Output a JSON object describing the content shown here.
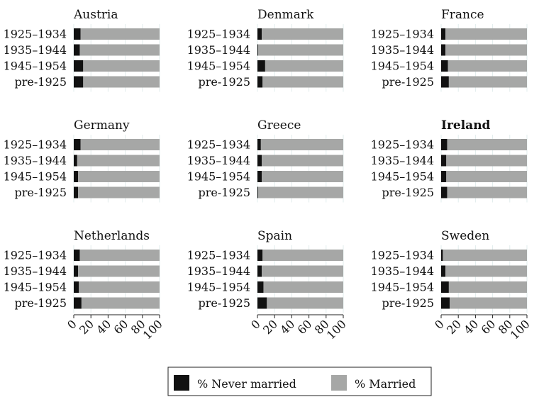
{
  "chart_data": {
    "type": "bar",
    "orientation": "horizontal",
    "stacked": true,
    "categories": [
      "1925–1934",
      "1935–1944",
      "1945–1954",
      "pre-1925"
    ],
    "xlim": [
      0,
      100
    ],
    "xticks": [
      0,
      20,
      40,
      60,
      80,
      100
    ],
    "grid": true,
    "colors": {
      "never_married": "#111111",
      "married": "#a6a7a6"
    },
    "legend": {
      "position": "bottom",
      "entries": [
        "% Never married",
        "% Married"
      ]
    },
    "panels": [
      {
        "title": "Austria",
        "bold": false,
        "series": [
          {
            "name": "% Never married",
            "values": [
              8,
              7,
              11,
              11
            ]
          },
          {
            "name": "% Married",
            "values": [
              92,
              93,
              89,
              89
            ]
          }
        ]
      },
      {
        "title": "Denmark",
        "bold": false,
        "series": [
          {
            "name": "% Never married",
            "values": [
              5,
              1,
              9,
              6
            ]
          },
          {
            "name": "% Married",
            "values": [
              95,
              99,
              91,
              94
            ]
          }
        ]
      },
      {
        "title": "France",
        "bold": false,
        "series": [
          {
            "name": "% Never married",
            "values": [
              5,
              5,
              8,
              9
            ]
          },
          {
            "name": "% Married",
            "values": [
              95,
              95,
              92,
              91
            ]
          }
        ]
      },
      {
        "title": "Germany",
        "bold": false,
        "series": [
          {
            "name": "% Never married",
            "values": [
              8,
              4,
              5,
              5
            ]
          },
          {
            "name": "% Married",
            "values": [
              92,
              96,
              95,
              95
            ]
          }
        ]
      },
      {
        "title": "Greece",
        "bold": false,
        "series": [
          {
            "name": "% Never married",
            "values": [
              4,
              5,
              5,
              1
            ]
          },
          {
            "name": "% Married",
            "values": [
              96,
              95,
              95,
              99
            ]
          }
        ]
      },
      {
        "title": "Ireland",
        "bold": true,
        "series": [
          {
            "name": "% Never married",
            "values": [
              7,
              6,
              6,
              7
            ]
          },
          {
            "name": "% Married",
            "values": [
              93,
              94,
              94,
              93
            ]
          }
        ]
      },
      {
        "title": "Netherlands",
        "bold": false,
        "series": [
          {
            "name": "% Never married",
            "values": [
              7,
              5,
              6,
              9
            ]
          },
          {
            "name": "% Married",
            "values": [
              93,
              95,
              94,
              91
            ]
          }
        ]
      },
      {
        "title": "Spain",
        "bold": false,
        "series": [
          {
            "name": "% Never married",
            "values": [
              6,
              5,
              7,
              11
            ]
          },
          {
            "name": "% Married",
            "values": [
              94,
              95,
              93,
              89
            ]
          }
        ]
      },
      {
        "title": "Sweden",
        "bold": false,
        "series": [
          {
            "name": "% Never married",
            "values": [
              2,
              5,
              9,
              10
            ]
          },
          {
            "name": "% Married",
            "values": [
              98,
              95,
              91,
              90
            ]
          }
        ]
      }
    ]
  }
}
